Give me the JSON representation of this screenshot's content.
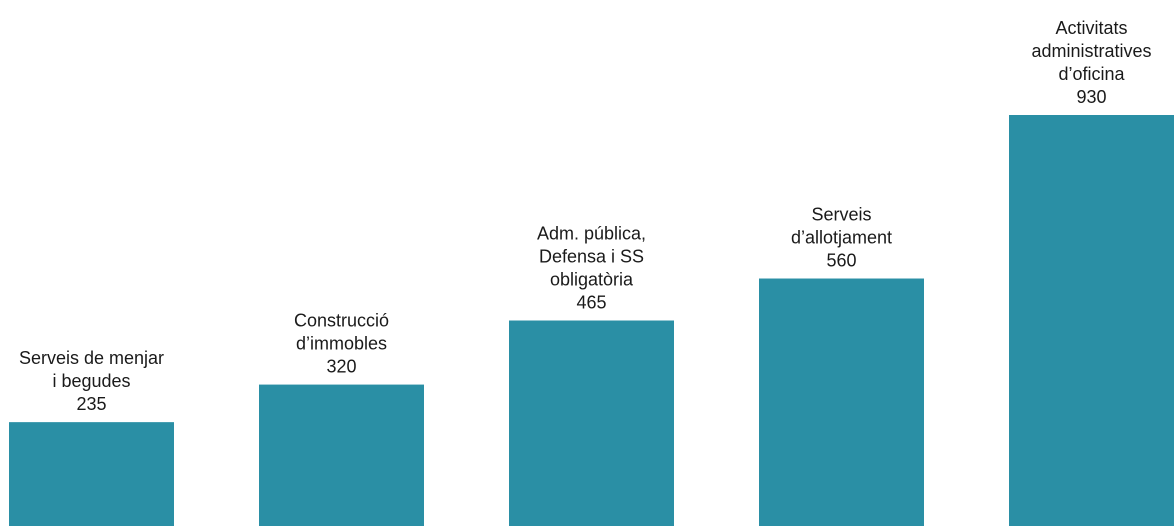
{
  "chart_data": {
    "type": "bar",
    "categories": [
      [
        "Serveis de menjar",
        "i begudes"
      ],
      [
        "Construcció",
        "d’immobles"
      ],
      [
        "Adm. pública,",
        "Defensa i SS",
        "obligatòria"
      ],
      [
        "Serveis",
        "d’allotjament"
      ],
      [
        "Activitats",
        "administratives",
        "d’oficina"
      ]
    ],
    "values": [
      235,
      320,
      465,
      560,
      930
    ],
    "value_labels": [
      "235",
      "320",
      "465",
      "560",
      "930"
    ],
    "bar_color": "#2a8fa5",
    "title": "",
    "xlabel": "",
    "ylabel": "",
    "ylim": [
      0,
      930
    ],
    "grid": false,
    "legend": "none"
  }
}
